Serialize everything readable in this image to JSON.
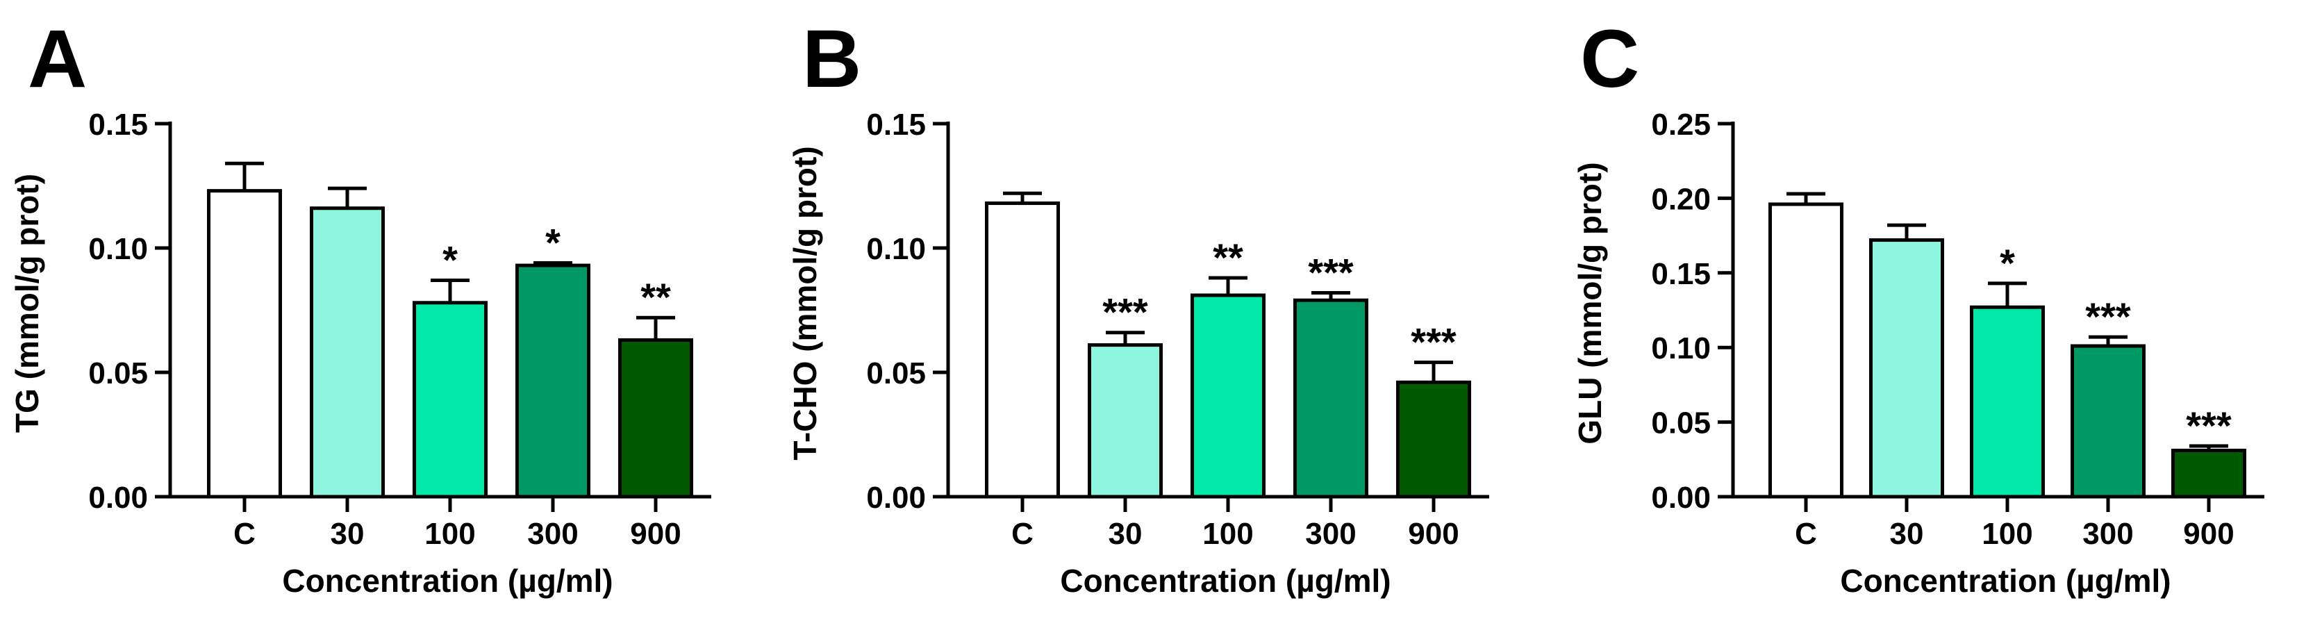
{
  "chart_data": [
    {
      "type": "bar",
      "panel": "A",
      "title": "",
      "xlabel": "Concentration (µg/ml)",
      "ylabel": "TG (mmol/g prot)",
      "ylim": [
        0,
        0.15
      ],
      "yticks": [
        "0.00",
        "0.05",
        "0.10",
        "0.15"
      ],
      "categories": [
        "C",
        "30",
        "100",
        "300",
        "900"
      ],
      "values": [
        0.123,
        0.116,
        0.078,
        0.093,
        0.063
      ],
      "errors": [
        0.011,
        0.008,
        0.009,
        0.001,
        0.009
      ],
      "significance": [
        "",
        "",
        "*",
        "*",
        "**"
      ],
      "colors": [
        "#ffffff",
        "#8ef5de",
        "#00e8a8",
        "#009966",
        "#005a00"
      ]
    },
    {
      "type": "bar",
      "panel": "B",
      "title": "",
      "xlabel": "Concentration (µg/ml)",
      "ylabel": "T-CHO (mmol/g prot)",
      "ylim": [
        0,
        0.15
      ],
      "yticks": [
        "0.00",
        "0.05",
        "0.10",
        "0.15"
      ],
      "categories": [
        "C",
        "30",
        "100",
        "300",
        "900"
      ],
      "values": [
        0.118,
        0.061,
        0.081,
        0.079,
        0.046
      ],
      "errors": [
        0.004,
        0.005,
        0.007,
        0.003,
        0.008
      ],
      "significance": [
        "",
        "***",
        "**",
        "***",
        "***"
      ],
      "colors": [
        "#ffffff",
        "#8ef5de",
        "#00e8a8",
        "#009966",
        "#005a00"
      ]
    },
    {
      "type": "bar",
      "panel": "C",
      "title": "",
      "xlabel": "Concentration (µg/ml)",
      "ylabel": "GLU (mmol/g prot)",
      "ylim": [
        0,
        0.25
      ],
      "yticks": [
        "0.00",
        "0.05",
        "0.10",
        "0.15",
        "0.20",
        "0.25"
      ],
      "categories": [
        "C",
        "30",
        "100",
        "300",
        "900"
      ],
      "values": [
        0.196,
        0.172,
        0.127,
        0.101,
        0.031
      ],
      "errors": [
        0.007,
        0.01,
        0.016,
        0.006,
        0.003
      ],
      "significance": [
        "",
        "",
        "*",
        "***",
        "***"
      ],
      "colors": [
        "#ffffff",
        "#8ef5de",
        "#00e8a8",
        "#009966",
        "#005a00"
      ]
    }
  ]
}
